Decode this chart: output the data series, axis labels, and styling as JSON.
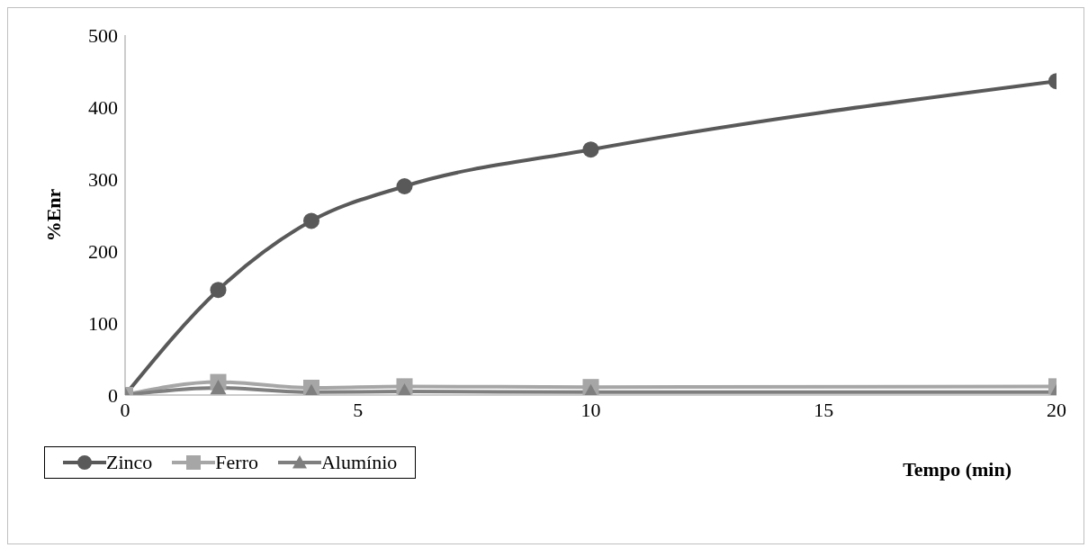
{
  "chart_data": {
    "type": "line",
    "xlabel": "Tempo (min)",
    "ylabel": "%Enr",
    "x": [
      0,
      2,
      4,
      6,
      10,
      20
    ],
    "series": [
      {
        "name": "Zinco",
        "color": "#595959",
        "marker": "circle",
        "values": [
          0,
          146,
          242,
          290,
          341,
          436
        ]
      },
      {
        "name": "Ferro",
        "color": "#a6a6a6",
        "marker": "square",
        "values": [
          0,
          18,
          10,
          12,
          11,
          12
        ]
      },
      {
        "name": "Alumínio",
        "color": "#7f7f7f",
        "marker": "triangle",
        "values": [
          0,
          10,
          4,
          5,
          4,
          4
        ]
      }
    ],
    "xlim": [
      0,
      20
    ],
    "xticks": [
      0,
      5,
      10,
      15,
      20
    ],
    "ylim": [
      0,
      500
    ],
    "yticks": [
      0,
      100,
      200,
      300,
      400,
      500
    ],
    "grid": false,
    "legend": "bottom left"
  }
}
